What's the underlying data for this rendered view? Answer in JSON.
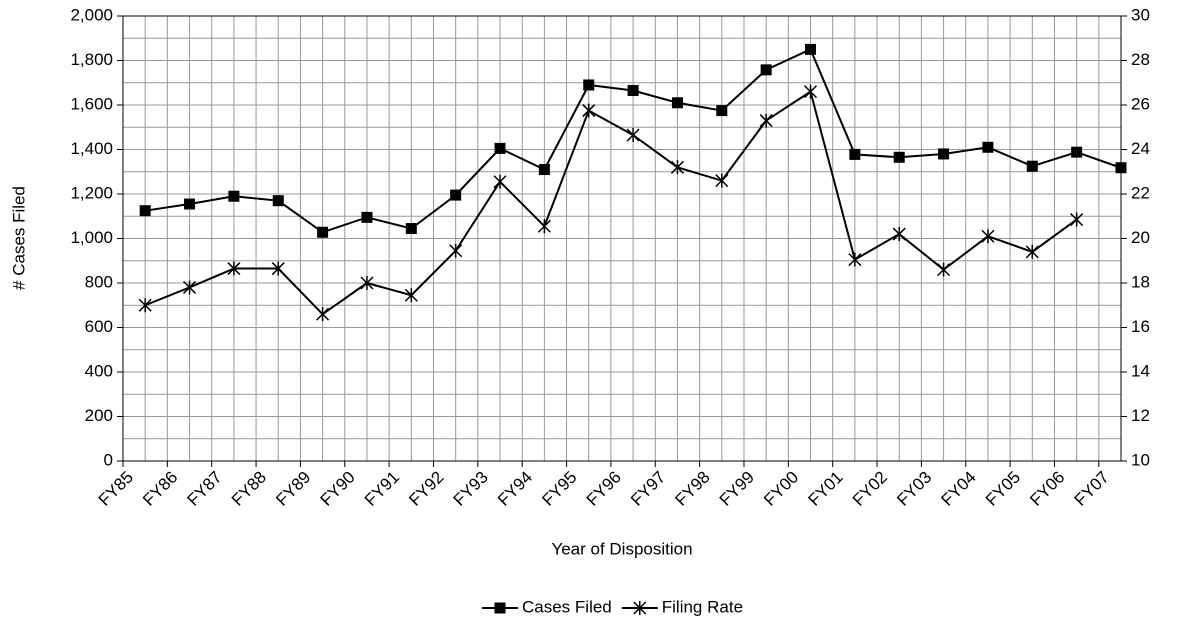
{
  "chart_data": {
    "type": "line",
    "x_label": "Year of Disposition",
    "y_label": "# Cases Filed",
    "categories": [
      "FY85",
      "FY86",
      "FY87",
      "FY88",
      "FY89",
      "FY90",
      "FY91",
      "FY92",
      "FY93",
      "FY94",
      "FY95",
      "FY96",
      "FY97",
      "FY98",
      "FY99",
      "FY00",
      "FY01",
      "FY02",
      "FY03",
      "FY04",
      "FY05",
      "FY06",
      "FY07"
    ],
    "series": [
      {
        "name": "Cases Filed",
        "color": "#000000",
        "marker": "square",
        "values": [
          1125,
          1155,
          1190,
          1170,
          1028,
          1095,
          1045,
          1195,
          1405,
          1310,
          1690,
          1665,
          1610,
          1575,
          1758,
          1850,
          1378,
          1365,
          1380,
          1410,
          1325,
          1388,
          1318
        ]
      },
      {
        "name": "Filing Rate",
        "color": "#000000",
        "marker": "asterisk",
        "axis": "y2",
        "values": [
          17.0,
          17.8,
          18.65,
          18.65,
          16.6,
          18.0,
          17.45,
          19.45,
          22.55,
          20.55,
          25.75,
          24.65,
          23.2,
          22.6,
          25.3,
          26.6,
          19.05,
          20.2,
          18.6,
          20.1,
          19.4,
          20.85,
          null
        ]
      }
    ],
    "ylim": [
      0,
      2000
    ],
    "yticks": [
      0,
      200,
      400,
      600,
      800,
      {
        "value": 1000,
        "label": "1,000"
      },
      {
        "value": 1200,
        "label": "1,200"
      },
      {
        "value": 1400,
        "label": "1,400"
      },
      {
        "value": 1600,
        "label": "1,600"
      },
      {
        "value": 1800,
        "label": "1,800"
      },
      {
        "value": 2000,
        "label": "2,000"
      }
    ],
    "y2lim": [
      10,
      30
    ],
    "y2ticks": [
      10,
      12,
      14,
      16,
      18,
      20,
      22,
      24,
      26,
      28,
      30
    ],
    "grid": true,
    "legend": "bottom"
  }
}
